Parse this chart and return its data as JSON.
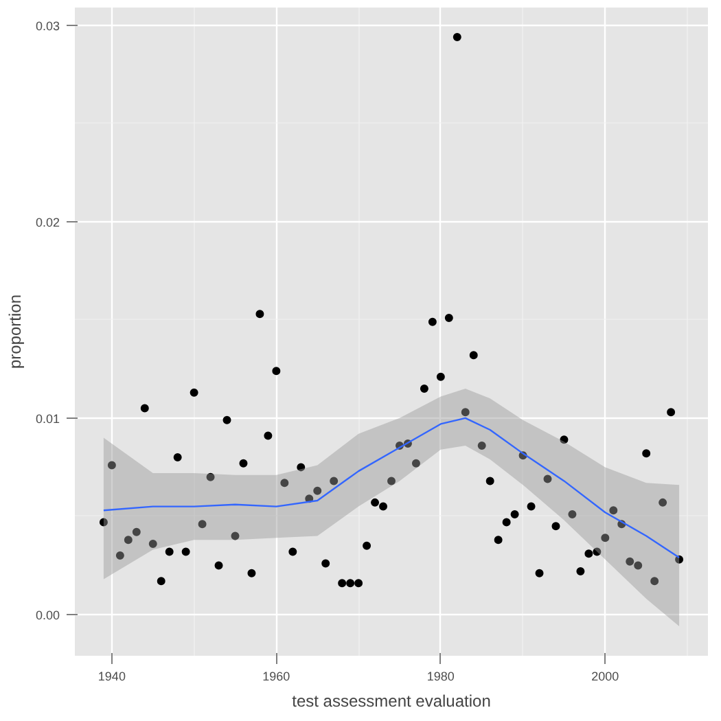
{
  "chart_data": {
    "type": "scatter",
    "xlabel": "test assessment evaluation",
    "ylabel": "proportion",
    "xlim": [
      1935.5,
      2012.5
    ],
    "ylim": [
      -0.0021,
      0.0309
    ],
    "xticks": [
      1940,
      1960,
      1980,
      2000
    ],
    "yticks": [
      {
        "value": 0,
        "label": "0.00"
      },
      {
        "value": 0.01,
        "label": "0.01"
      },
      {
        "value": 0.02,
        "label": "0.02"
      },
      {
        "value": 0.03,
        "label": "0.03"
      }
    ],
    "grid": true,
    "marker": "circle",
    "series": [
      {
        "color": "#000000",
        "x": [
          1939,
          1940,
          1941,
          1942,
          1943,
          1944,
          1945,
          1946,
          1947,
          1948,
          1949,
          1950,
          1951,
          1952,
          1953,
          1954,
          1955,
          1956,
          1957,
          1958,
          1959,
          1960,
          1961,
          1962,
          1963,
          1964,
          1965,
          1966,
          1967,
          1968,
          1969,
          1970,
          1971,
          1972,
          1973,
          1974,
          1975,
          1976,
          1977,
          1978,
          1979,
          1980,
          1981,
          1982,
          1983,
          1984,
          1985,
          1986,
          1987,
          1988,
          1989,
          1990,
          1991,
          1992,
          1993,
          1994,
          1995,
          1996,
          1997,
          1998,
          1999,
          2000,
          2001,
          2002,
          2003,
          2004,
          2005,
          2006,
          2007,
          2008,
          2009
        ],
        "values": [
          0.0047,
          0.0076,
          0.003,
          0.0038,
          0.0042,
          0.0105,
          0.0036,
          0.0017,
          0.0032,
          0.008,
          0.0032,
          0.0113,
          0.0046,
          0.007,
          0.0025,
          0.0099,
          0.004,
          0.0077,
          0.0021,
          0.0153,
          0.0091,
          0.0124,
          0.0067,
          0.0032,
          0.0075,
          0.0059,
          0.0063,
          0.0026,
          0.0068,
          0.0016,
          0.0016,
          0.0016,
          0.0035,
          0.0057,
          0.0055,
          0.0068,
          0.0086,
          0.0087,
          0.0077,
          0.0115,
          0.0149,
          0.0121,
          0.0151,
          0.0294,
          0.0103,
          0.0132,
          0.0086,
          0.0068,
          0.0038,
          0.0047,
          0.0051,
          0.0081,
          0.0055,
          0.0021,
          0.0069,
          0.0045,
          0.0089,
          0.0051,
          0.0022,
          0.0031,
          0.0032,
          0.0039,
          0.0053,
          0.0046,
          0.0027,
          0.0025,
          0.0082,
          0.0017,
          0.0057,
          0.0103,
          0.0028
        ]
      },
      {
        "type": "line",
        "color": "#3366ff",
        "marker": "none",
        "x": [
          1939,
          1945,
          1950,
          1955,
          1960,
          1965,
          1970,
          1975,
          1980,
          1983,
          1986,
          1990,
          1995,
          2000,
          2005,
          2009
        ],
        "values": [
          0.0053,
          0.0055,
          0.0055,
          0.0056,
          0.0055,
          0.0058,
          0.0073,
          0.0085,
          0.0097,
          0.01,
          0.0094,
          0.0082,
          0.0068,
          0.0052,
          0.004,
          0.0029
        ],
        "lower": [
          0.0018,
          0.0033,
          0.0038,
          0.0038,
          0.0039,
          0.004,
          0.0055,
          0.0068,
          0.0084,
          0.0086,
          0.0079,
          0.0066,
          0.0048,
          0.0028,
          0.0008,
          -0.0006
        ],
        "upper": [
          0.009,
          0.0072,
          0.0072,
          0.0071,
          0.0071,
          0.0076,
          0.0092,
          0.01,
          0.0111,
          0.0115,
          0.011,
          0.0099,
          0.0088,
          0.0075,
          0.0067,
          0.0066
        ]
      }
    ]
  }
}
